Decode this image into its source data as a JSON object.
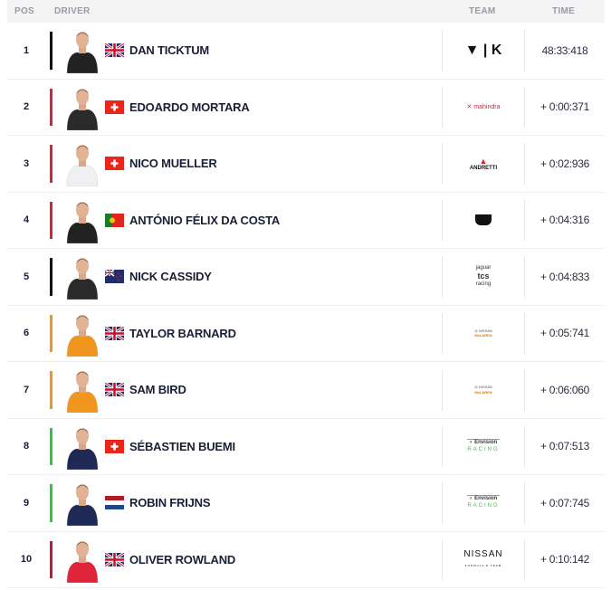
{
  "header": {
    "pos": "POS",
    "driver": "DRIVER",
    "team": "TEAM",
    "time": "TIME"
  },
  "rows": [
    {
      "pos": "1",
      "name": "DAN TICKTUM",
      "flag": "gb",
      "team_logo": "cupra-kiro",
      "team_text": "▼ | K",
      "time": "48:33:418",
      "bar_color": "#111111",
      "suit": "#222222"
    },
    {
      "pos": "2",
      "name": "EDOARDO MORTARA",
      "flag": "ch",
      "team_logo": "mahindra",
      "team_text": "mahindra",
      "time": "+ 0:00:371",
      "bar_color": "#d0253a",
      "suit": "#2a2a2a"
    },
    {
      "pos": "3",
      "name": "NICO MUELLER",
      "flag": "ch",
      "team_logo": "andretti",
      "team_text": "ANDRETTI",
      "time": "+ 0:02:936",
      "bar_color": "#d0253a",
      "suit": "#f0f0f2"
    },
    {
      "pos": "4",
      "name": "ANTÓNIO FÉLIX DA COSTA",
      "flag": "pt",
      "team_logo": "porsche",
      "team_text": "",
      "time": "+ 0:04:316",
      "bar_color": "#d0253a",
      "suit": "#222222"
    },
    {
      "pos": "5",
      "name": "NICK CASSIDY",
      "flag": "nz",
      "team_logo": "jaguar-tcs",
      "team_text": "jaguar tcs racing",
      "time": "+ 0:04:833",
      "bar_color": "#111111",
      "suit": "#2a2a2a"
    },
    {
      "pos": "6",
      "name": "TAYLOR BARNARD",
      "flag": "gb",
      "team_logo": "nissan-mclaren",
      "team_text": "NISSAN McLAREN",
      "time": "+ 0:05:741",
      "bar_color": "#f0961e",
      "suit": "#f0961e"
    },
    {
      "pos": "7",
      "name": "SAM BIRD",
      "flag": "gb",
      "team_logo": "nissan-mclaren",
      "team_text": "NISSAN McLAREN",
      "time": "+ 0:06:060",
      "bar_color": "#f0961e",
      "suit": "#f0961e"
    },
    {
      "pos": "8",
      "name": "SÉBASTIEN BUEMI",
      "flag": "ch",
      "team_logo": "envision",
      "team_text": "Envision RACING",
      "time": "+ 0:07:513",
      "bar_color": "#2ec83c",
      "suit": "#1e2a55"
    },
    {
      "pos": "9",
      "name": "ROBIN FRIJNS",
      "flag": "nl",
      "team_logo": "envision",
      "team_text": "Envision RACING",
      "time": "+ 0:07:745",
      "bar_color": "#2ec83c",
      "suit": "#1e2a55"
    },
    {
      "pos": "10",
      "name": "OLIVER ROWLAND",
      "flag": "gb",
      "team_logo": "nissan",
      "team_text": "NISSAN",
      "time": "+ 0:10:142",
      "bar_color": "#c4173f",
      "suit": "#e0243a"
    }
  ]
}
